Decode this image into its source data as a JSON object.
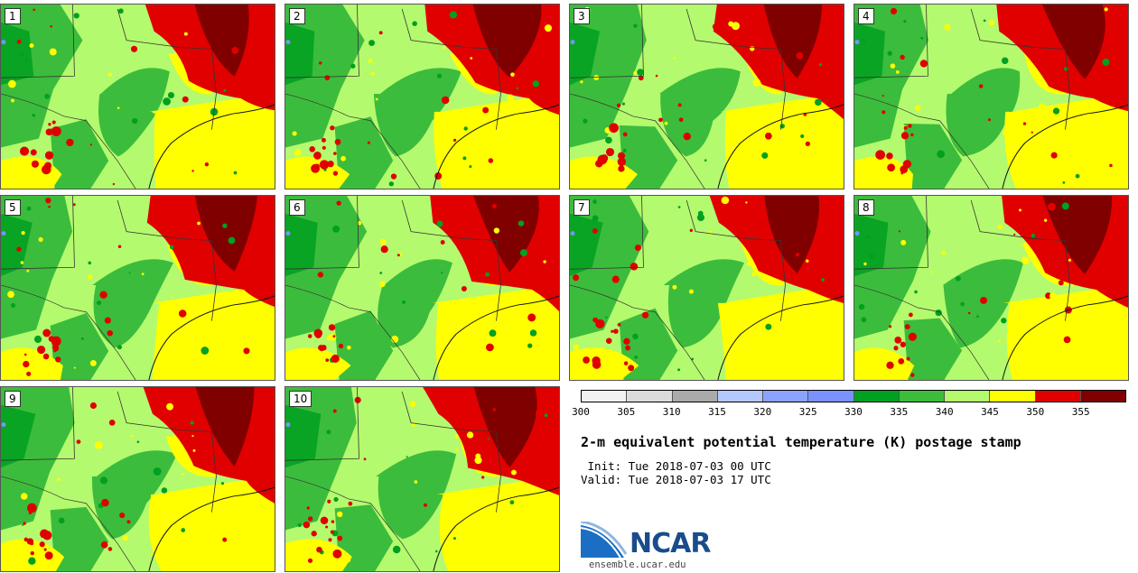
{
  "stamp": {
    "title": "2-m equivalent potential temperature (K) postage stamp",
    "init": " Init: Tue 2018-07-03 00 UTC",
    "valid": "Valid: Tue 2018-07-03 17 UTC"
  },
  "members": [
    "1",
    "2",
    "3",
    "4",
    "5",
    "6",
    "7",
    "8",
    "9",
    "10"
  ],
  "colorbar": {
    "ticks": [
      "300",
      "305",
      "310",
      "315",
      "320",
      "325",
      "330",
      "335",
      "340",
      "345",
      "350",
      "355"
    ],
    "colors": [
      "#f2f2f2",
      "#dcdcdc",
      "#aaaaaa",
      "#b4c8ff",
      "#8ca2ff",
      "#7a92ff",
      "#00a020",
      "#3cbc3c",
      "#b4fa6e",
      "#ffff00",
      "#e00000",
      "#800000"
    ]
  },
  "map_colors": {
    "base": "#b4fa6e",
    "green_dark": "#00a020",
    "green_mid": "#3cbc3c",
    "yellow": "#ffff00",
    "red": "#e00000",
    "maroon": "#800000",
    "blue": "#7a92ff"
  },
  "logo": {
    "word": "NCAR",
    "url": "ensemble.ucar.edu"
  }
}
